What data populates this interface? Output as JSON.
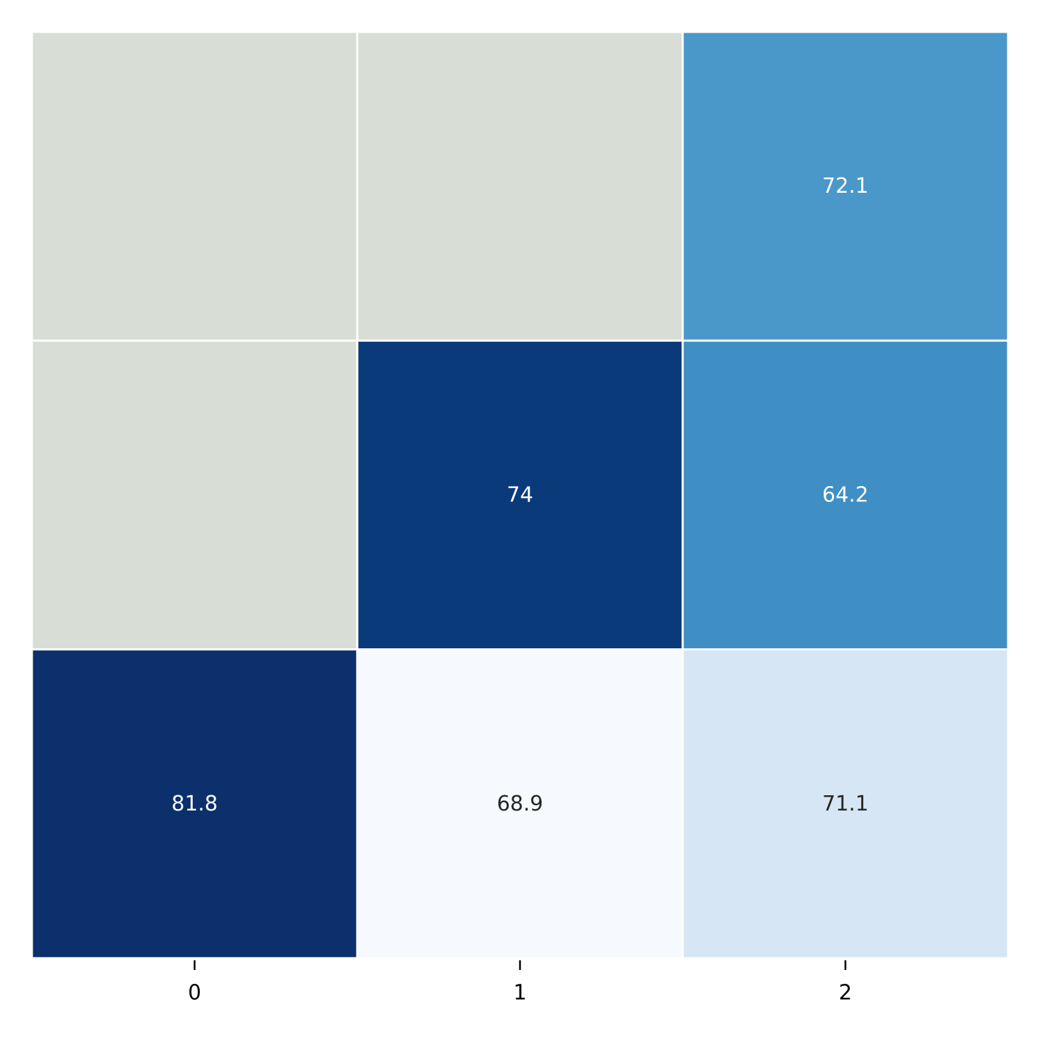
{
  "chart_data": {
    "type": "heatmap",
    "x_ticks": [
      "0",
      "1",
      "2"
    ],
    "rows": 3,
    "cols": 3,
    "values": [
      [
        null,
        null,
        72.1
      ],
      [
        null,
        74,
        64.2
      ],
      [
        81.8,
        68.9,
        71.1
      ]
    ],
    "labels": [
      [
        null,
        null,
        "72.1"
      ],
      [
        null,
        "74",
        "64.2"
      ],
      [
        "81.8",
        "68.9",
        "71.1"
      ]
    ],
    "colormap": "Blues",
    "missing_color": "#d8ddd6",
    "cell_colors": [
      [
        null,
        null,
        "#4a98c9"
      ],
      [
        null,
        "#0a3a7a",
        "#3f8fc5"
      ],
      [
        "#0b306b",
        "#f6faff",
        "#d6e6f4"
      ]
    ],
    "text_colors": [
      [
        null,
        null,
        "#ffffff"
      ],
      [
        null,
        "#ffffff",
        "#ffffff"
      ],
      [
        "#ffffff",
        "#262626",
        "#262626"
      ]
    ],
    "cell_border_color": "#ffffff",
    "grid": false,
    "legend": "none"
  }
}
